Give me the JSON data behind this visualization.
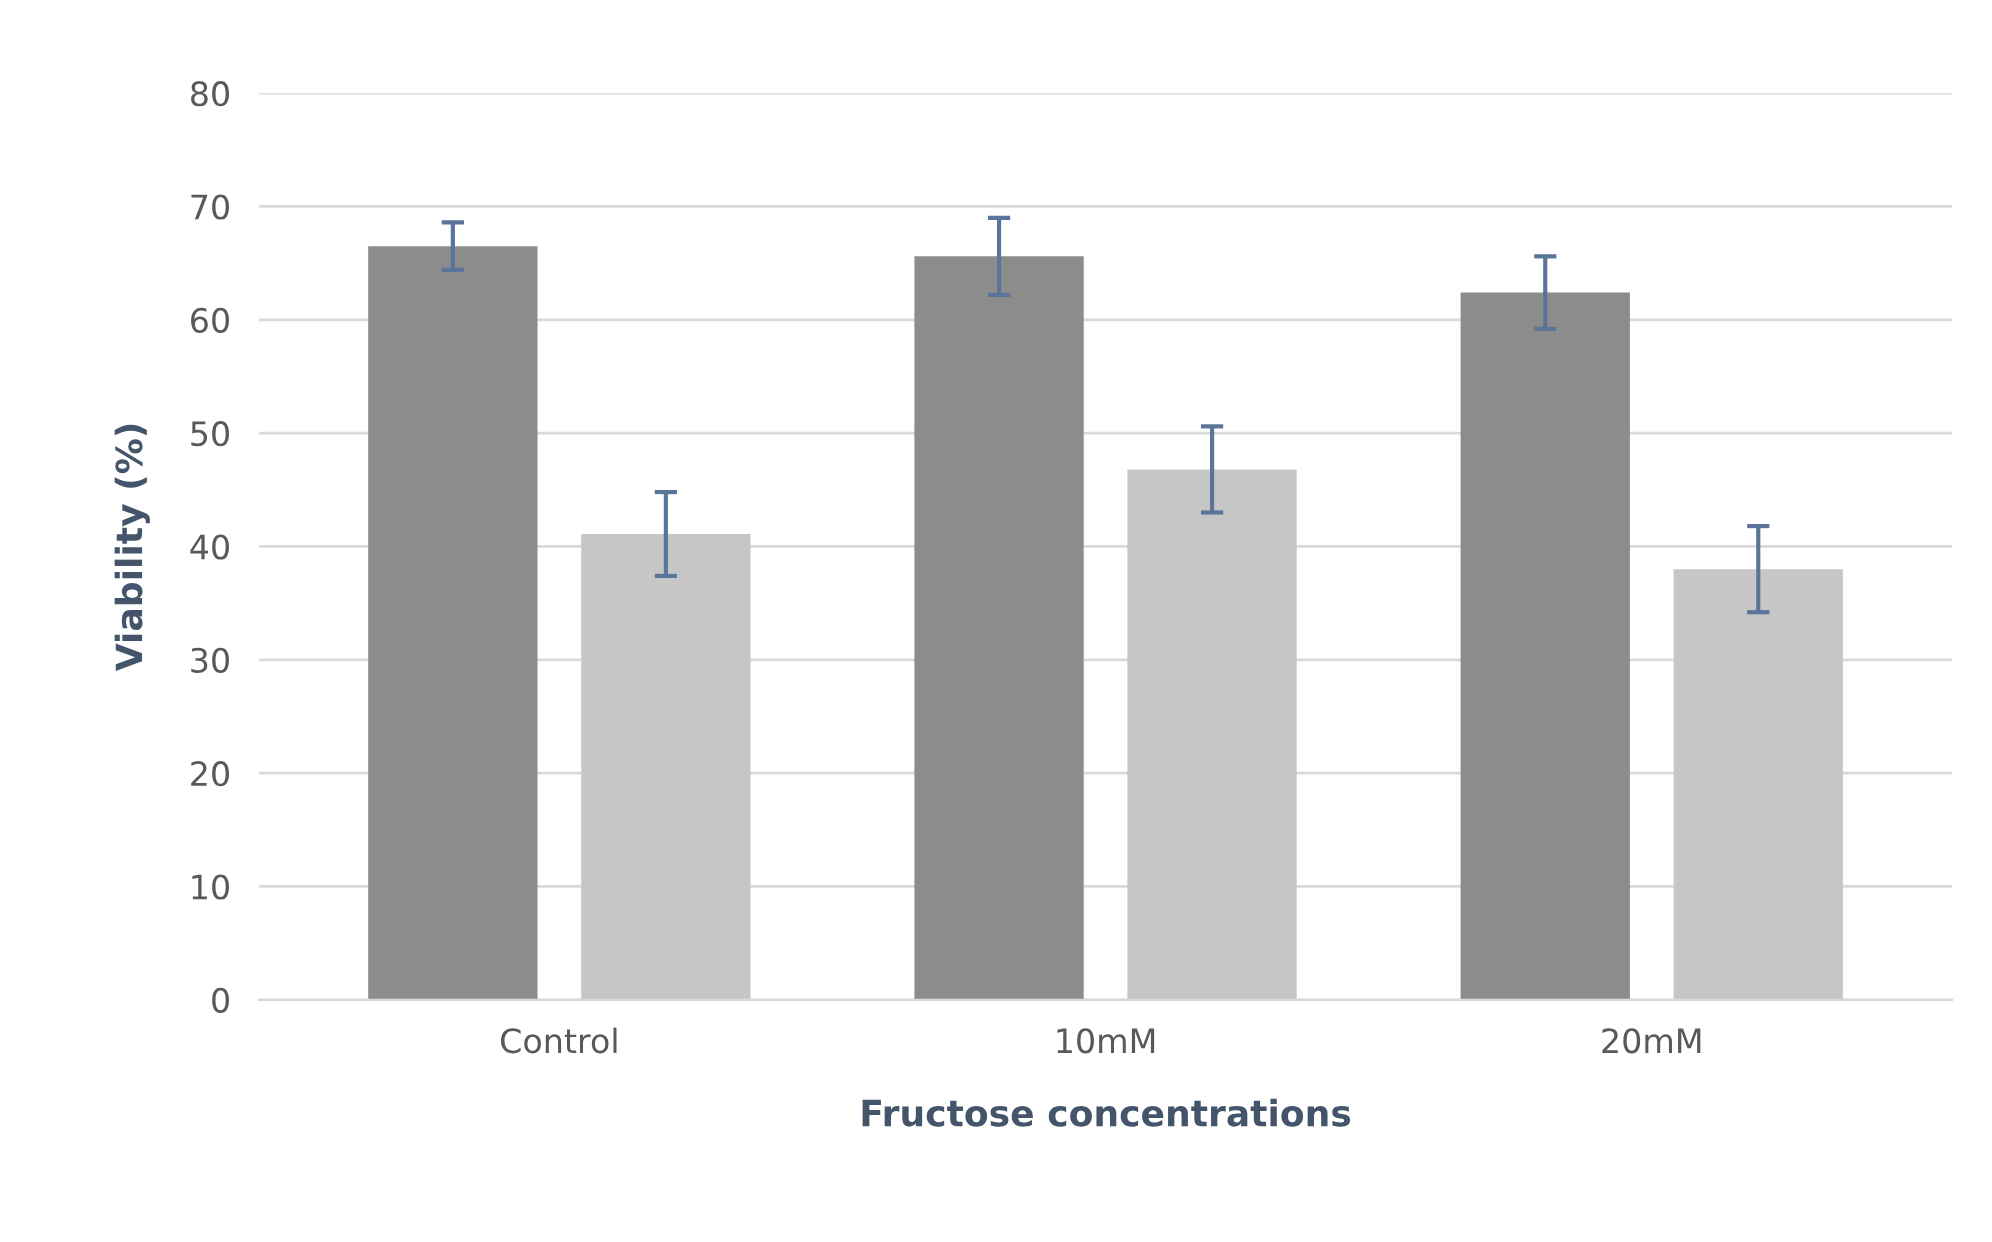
{
  "chart_data": {
    "type": "bar",
    "xlabel": "Fructose concentrations",
    "ylabel": "Viability (%)",
    "categories": [
      "Control",
      "10mM",
      "20mM"
    ],
    "series": [
      {
        "color": "#8c8c8c",
        "values": [
          66.5,
          65.6,
          62.4
        ],
        "errors": [
          2.1,
          3.4,
          3.2
        ]
      },
      {
        "color": "#c6c6c6",
        "values": [
          41.1,
          46.8,
          38.0
        ],
        "errors": [
          3.7,
          3.8,
          3.8
        ]
      }
    ],
    "ylim": [
      0,
      80
    ],
    "yticks": [
      0,
      10,
      20,
      30,
      40,
      50,
      60,
      70,
      80
    ],
    "grid": "y",
    "legend": false
  }
}
